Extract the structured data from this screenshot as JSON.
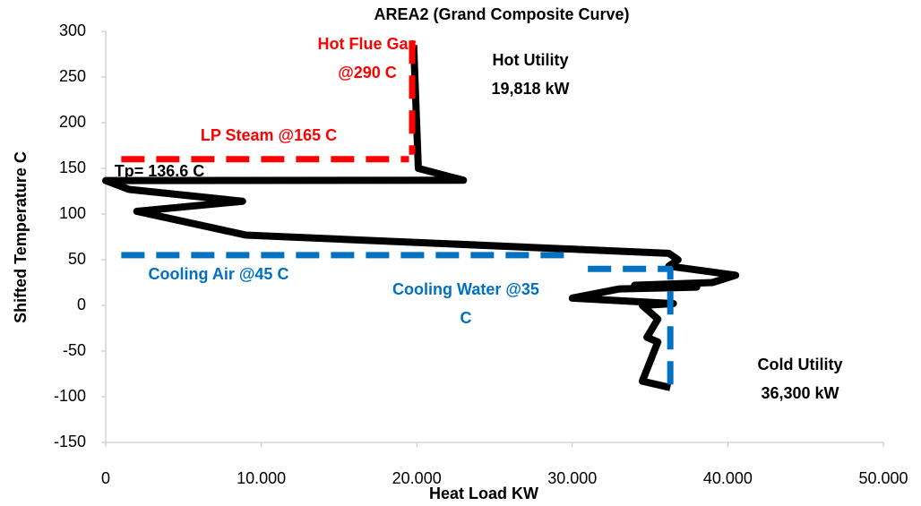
{
  "chart_data": {
    "type": "line",
    "title": "AREA2 (Grand Composite Curve)",
    "x_label": "Heat Load KW",
    "y_label": "Shifted Temperature C",
    "xlim": [
      0,
      50000
    ],
    "xticks": [
      0,
      {
        "value": 10000,
        "label": "10.000"
      },
      {
        "value": 20000,
        "label": "20.000"
      },
      {
        "value": 30000,
        "label": "30.000"
      },
      {
        "value": 40000,
        "label": "40.000"
      },
      {
        "value": 50000,
        "label": "50.000"
      }
    ],
    "ylim": [
      -150,
      300
    ],
    "yticks": [
      -150,
      -100,
      -50,
      0,
      50,
      100,
      150,
      200,
      250,
      300
    ],
    "series": [
      {
        "color": "#000000",
        "dashed": false,
        "x": [
          19800,
          20100,
          23000,
          0,
          1500,
          8800,
          2000,
          9000,
          36200,
          36800,
          36200,
          40500,
          39000,
          34000,
          38000,
          33000,
          30000,
          36500,
          34500,
          35500,
          34800,
          35500,
          34500,
          36300
        ],
        "values": [
          285,
          150,
          137,
          136.6,
          127,
          114,
          103,
          77,
          57,
          50,
          43,
          33,
          25,
          22,
          20,
          18,
          8,
          2,
          0,
          -15,
          -35,
          -40,
          -83,
          -90
        ]
      },
      {
        "color": "#ff0000",
        "dashed": true,
        "x": [
          1000,
          19500
        ],
        "values": [
          160,
          160
        ]
      },
      {
        "color": "#ff0000",
        "dashed": true,
        "x": [
          19700,
          19700
        ],
        "values": [
          290,
          165
        ]
      },
      {
        "color": "#0070c0",
        "dashed": true,
        "x": [
          1000,
          30000
        ],
        "values": [
          55,
          55
        ]
      },
      {
        "color": "#0070c0",
        "dashed": true,
        "x": [
          31000,
          36300,
          36300
        ],
        "values": [
          40,
          40,
          -90
        ]
      }
    ],
    "annotations": [
      {
        "lines": [
          "Hot Flue Gas",
          "@290 C"
        ],
        "color": "#ff0000"
      },
      {
        "lines": [
          "Hot Utility",
          "19,818 kW"
        ],
        "color": "#000000"
      },
      {
        "lines": [
          "LP Steam @165 C"
        ],
        "color": "#ff0000"
      },
      {
        "lines": [
          "Tp= 136.6 C"
        ],
        "color": "#000000"
      },
      {
        "lines": [
          "Cooling Air @45 C"
        ],
        "color": "#0070c0"
      },
      {
        "lines": [
          "Cooling Water @35",
          "C"
        ],
        "color": "#0070c0"
      },
      {
        "lines": [
          "Cold Utility",
          "36,300 kW"
        ],
        "color": "#000000"
      }
    ]
  }
}
